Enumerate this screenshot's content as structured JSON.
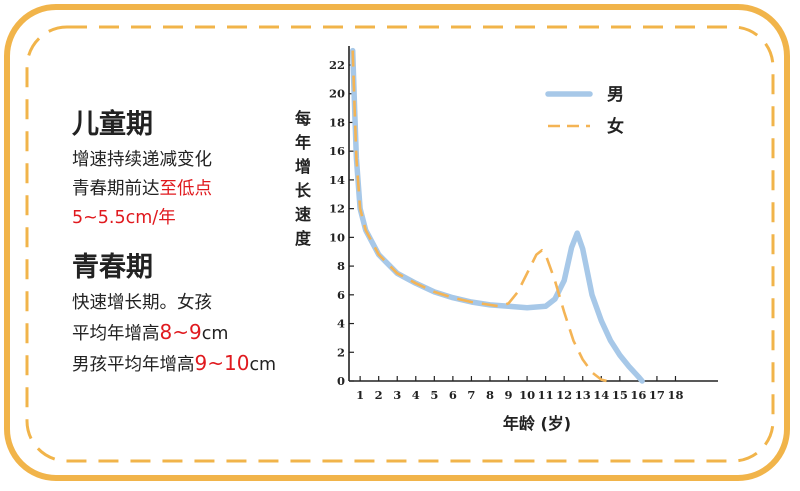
{
  "childhood": {
    "title": "儿童期",
    "line1": "增速持续递减变化",
    "line2_prefix": "青春期前达",
    "line2_highlight": "至低点",
    "line3": "5~5.5cm/年"
  },
  "puberty": {
    "title": "青春期",
    "line1": "快速增长期。女孩",
    "line2_prefix": "平均年增高",
    "line2_highlight": "8~9",
    "line2_suffix": "cm",
    "line3_prefix": "男孩平均年增高",
    "line3_highlight": "9~10",
    "line3_suffix": "cm"
  },
  "colors": {
    "frame": "#f1b44a",
    "male": "#a7c8e8",
    "female": "#f4b455",
    "highlight": "#e0191e",
    "axis": "#222222"
  },
  "chart_data": {
    "type": "line",
    "xlabel": "年龄 (岁)",
    "ylabel": "每年增长速度",
    "xlim": [
      0.5,
      18
    ],
    "ylim": [
      0,
      23
    ],
    "xticks": [
      1,
      2,
      3,
      4,
      5,
      6,
      7,
      8,
      9,
      10,
      11,
      12,
      13,
      14,
      15,
      16,
      17,
      18
    ],
    "yticks": [
      0,
      2,
      4,
      6,
      8,
      10,
      12,
      14,
      16,
      18,
      20,
      22
    ],
    "legend_position": "top-right",
    "series": [
      {
        "name": "男",
        "style": "solid",
        "x": [
          0.6,
          0.7,
          0.8,
          1.0,
          1.3,
          2.0,
          3.0,
          4.0,
          5.0,
          6.0,
          7.0,
          8.0,
          9.0,
          10.0,
          11.0,
          11.5,
          12.0,
          12.4,
          12.7,
          13.0,
          13.5,
          14.0,
          14.5,
          15.0,
          15.5,
          16.0,
          16.2
        ],
        "y": [
          23.0,
          19.0,
          15.5,
          12.0,
          10.5,
          8.8,
          7.5,
          6.8,
          6.2,
          5.8,
          5.5,
          5.3,
          5.2,
          5.1,
          5.2,
          5.7,
          7.0,
          9.3,
          10.3,
          9.2,
          6.0,
          4.2,
          2.8,
          1.8,
          1.0,
          0.3,
          0.0
        ]
      },
      {
        "name": "女",
        "style": "dashed",
        "x": [
          0.6,
          0.7,
          0.8,
          1.0,
          1.3,
          2.0,
          3.0,
          4.0,
          5.0,
          6.0,
          7.0,
          8.0,
          8.5,
          9.0,
          9.5,
          10.0,
          10.5,
          10.8,
          11.0,
          11.5,
          12.0,
          12.5,
          13.0,
          13.5,
          14.0,
          14.3
        ],
        "y": [
          23.0,
          19.0,
          15.5,
          12.0,
          10.5,
          8.8,
          7.5,
          6.8,
          6.2,
          5.8,
          5.5,
          5.3,
          5.2,
          5.4,
          6.2,
          7.5,
          8.8,
          9.1,
          8.8,
          7.0,
          4.8,
          2.8,
          1.5,
          0.6,
          0.1,
          0.0
        ]
      }
    ]
  }
}
